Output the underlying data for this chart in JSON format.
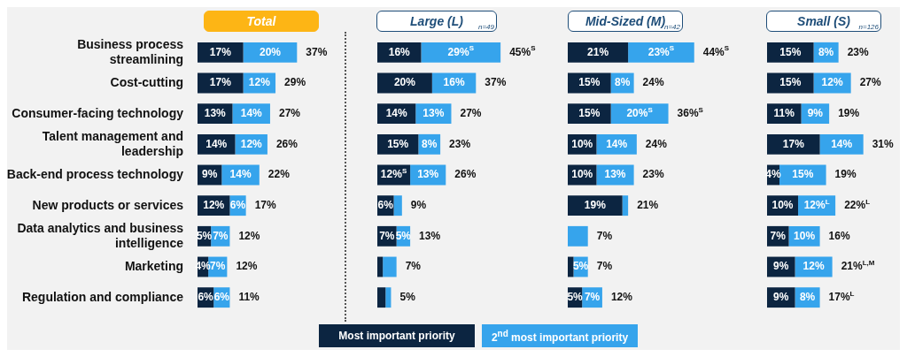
{
  "chart_data": [
    {
      "type": "bar",
      "orientation": "horizontal",
      "stacked": true,
      "title": "Total",
      "tick_labels": "y",
      "categories": [
        "Business process streamlining",
        "Cost-cutting",
        "Consumer-facing technology",
        "Talent management and leadership",
        "Back-end process technology",
        "New products or services",
        "Data analytics and business intelligence",
        "Marketing",
        "Regulation and compliance"
      ],
      "series": [
        {
          "color": "#0c2541",
          "values": [
            17,
            17,
            13,
            14,
            9,
            12,
            5,
            4,
            6
          ],
          "value_labels": [
            "17%",
            "17%",
            "13%",
            "14%",
            "9%",
            "12%",
            "5%",
            "4%",
            "6%"
          ]
        },
        {
          "color": "#36a4ec",
          "values": [
            20,
            12,
            14,
            12,
            14,
            6,
            7,
            7,
            6
          ],
          "value_labels": [
            "20%",
            "12%",
            "14%",
            "12%",
            "14%",
            "6%",
            "7%",
            "7%",
            "6%"
          ]
        }
      ],
      "totals": [
        "37%",
        "29%",
        "27%",
        "26%",
        "22%",
        "17%",
        "12%",
        "12%",
        "11%"
      ]
    },
    {
      "type": "bar",
      "orientation": "horizontal",
      "stacked": true,
      "title": "Large (L)",
      "subtitle": "n=49",
      "tick_labels": false,
      "legend": "bottom",
      "categories": [
        null,
        null,
        null,
        null,
        null,
        null,
        null,
        null,
        null
      ],
      "series": [
        {
          "name": "Most important priority",
          "color": "#0c2541",
          "values": [
            16,
            20,
            14,
            15,
            12,
            6,
            7,
            2,
            3
          ],
          "value_labels": [
            "16%",
            "20%",
            "14%",
            "15%",
            "12%$^{S}$",
            "6%",
            "7%",
            null,
            null
          ]
        },
        {
          "name": "2$^{nd}$ most important priority",
          "color": "#36a4ec",
          "values": [
            29,
            16,
            13,
            8,
            13,
            3,
            5,
            5,
            2
          ],
          "value_labels": [
            "29%$^{S}$",
            "16%",
            "13%",
            "8%",
            "13%",
            null,
            "5%",
            null,
            null
          ]
        }
      ],
      "totals": [
        "45%$^{S}$",
        "37%",
        "27%",
        "23%",
        "26%",
        "9%",
        "13%",
        "7%",
        "5%"
      ]
    },
    {
      "type": "bar",
      "orientation": "horizontal",
      "stacked": true,
      "title": "Mid-Sized (M)",
      "subtitle": "n=42",
      "tick_labels": false,
      "categories": [
        null,
        null,
        null,
        null,
        null,
        null,
        null,
        null,
        null
      ],
      "series": [
        {
          "color": "#0c2541",
          "values": [
            21,
            15,
            15,
            10,
            10,
            19,
            null,
            2,
            5
          ],
          "value_labels": [
            "21%",
            "15%",
            "15%",
            "10%",
            "10%",
            "19%",
            null,
            null,
            "5%"
          ]
        },
        {
          "color": "#36a4ec",
          "values": [
            23,
            8,
            20,
            14,
            13,
            2,
            7,
            5,
            7
          ],
          "value_labels": [
            "23%$^{S}$",
            "8%",
            "20%$^{S}$",
            "14%",
            "13%",
            null,
            null,
            "5%",
            "7%"
          ]
        }
      ],
      "totals": [
        "44%$^{S}$",
        "24%",
        "36%$^{S}$",
        "24%",
        "23%",
        "21%",
        "7%",
        "7%",
        "12%"
      ]
    },
    {
      "type": "bar",
      "orientation": "horizontal",
      "stacked": true,
      "title": "Small (S)",
      "subtitle": "n=126",
      "tick_labels": false,
      "categories": [
        null,
        null,
        null,
        null,
        null,
        null,
        null,
        null,
        null
      ],
      "series": [
        {
          "color": "#0c2541",
          "values": [
            15,
            15,
            11,
            17,
            4,
            10,
            7,
            9,
            9
          ],
          "value_labels": [
            "15%",
            "15%",
            "11%",
            "17%",
            "4%",
            "10%",
            "7%",
            "9%",
            "9%"
          ]
        },
        {
          "color": "#36a4ec",
          "values": [
            8,
            12,
            9,
            14,
            15,
            12,
            10,
            12,
            8
          ],
          "value_labels": [
            "8%",
            "12%",
            "9%",
            "14%",
            "15%",
            "12%$^{L}$",
            "10%",
            "12%",
            "8%"
          ]
        }
      ],
      "totals": [
        "23%",
        "27%",
        "19%",
        "31%",
        "19%",
        "22%$^{L}$",
        "16%",
        "21%$^{L,M}$",
        "17%$^{L}$"
      ]
    }
  ]
}
